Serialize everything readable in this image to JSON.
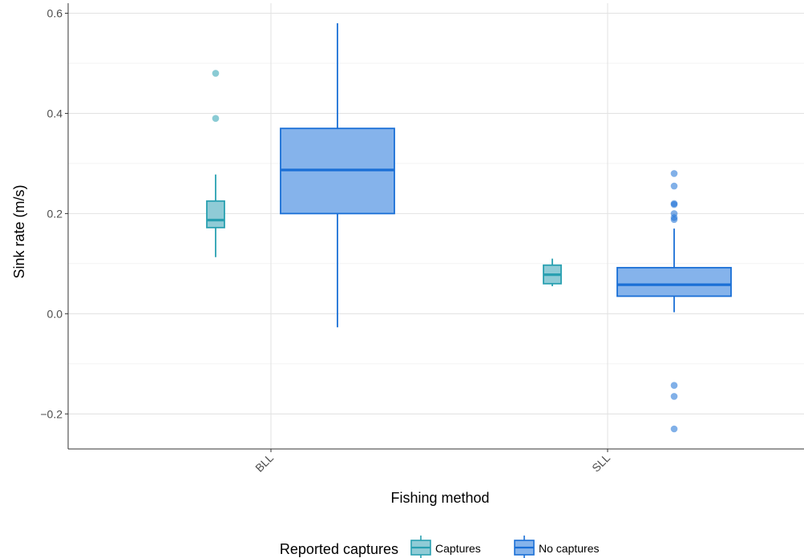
{
  "chart_data": {
    "type": "box",
    "xlabel": "Fishing method",
    "ylabel": "Sink rate (m/s)",
    "categories": [
      "BLL",
      "SLL"
    ],
    "ylim": [
      -0.27,
      0.62
    ],
    "yticks": [
      -0.2,
      0.0,
      0.2,
      0.4,
      0.6
    ],
    "ytick_labels": [
      "−0.2",
      "0.0",
      "0.2",
      "0.4",
      "0.6"
    ],
    "grid": true,
    "legend": {
      "title": "Reported captures",
      "position": "bottom",
      "entries": [
        "Captures",
        "No captures"
      ]
    },
    "series": [
      {
        "name": "Captures",
        "color": "#29a0b1",
        "fill": "#8fcbd6",
        "boxes": [
          {
            "category": "BLL",
            "whisker_low": 0.113,
            "q1": 0.172,
            "median": 0.187,
            "q3": 0.225,
            "whisker_high": 0.278,
            "outliers": [
              0.39,
              0.48
            ]
          },
          {
            "category": "SLL",
            "whisker_low": 0.055,
            "q1": 0.06,
            "median": 0.078,
            "q3": 0.097,
            "whisker_high": 0.11,
            "outliers": []
          }
        ]
      },
      {
        "name": "No captures",
        "color": "#1a6fd6",
        "fill": "#85b3eb",
        "boxes": [
          {
            "category": "BLL",
            "whisker_low": -0.027,
            "q1": 0.2,
            "median": 0.287,
            "q3": 0.37,
            "whisker_high": 0.58,
            "outliers": []
          },
          {
            "category": "SLL",
            "whisker_low": 0.003,
            "q1": 0.035,
            "median": 0.058,
            "q3": 0.092,
            "whisker_high": 0.17,
            "outliers": [
              0.188,
              0.192,
              0.2,
              0.218,
              0.22,
              0.255,
              0.28,
              -0.143,
              -0.165,
              -0.23
            ]
          }
        ]
      }
    ]
  }
}
